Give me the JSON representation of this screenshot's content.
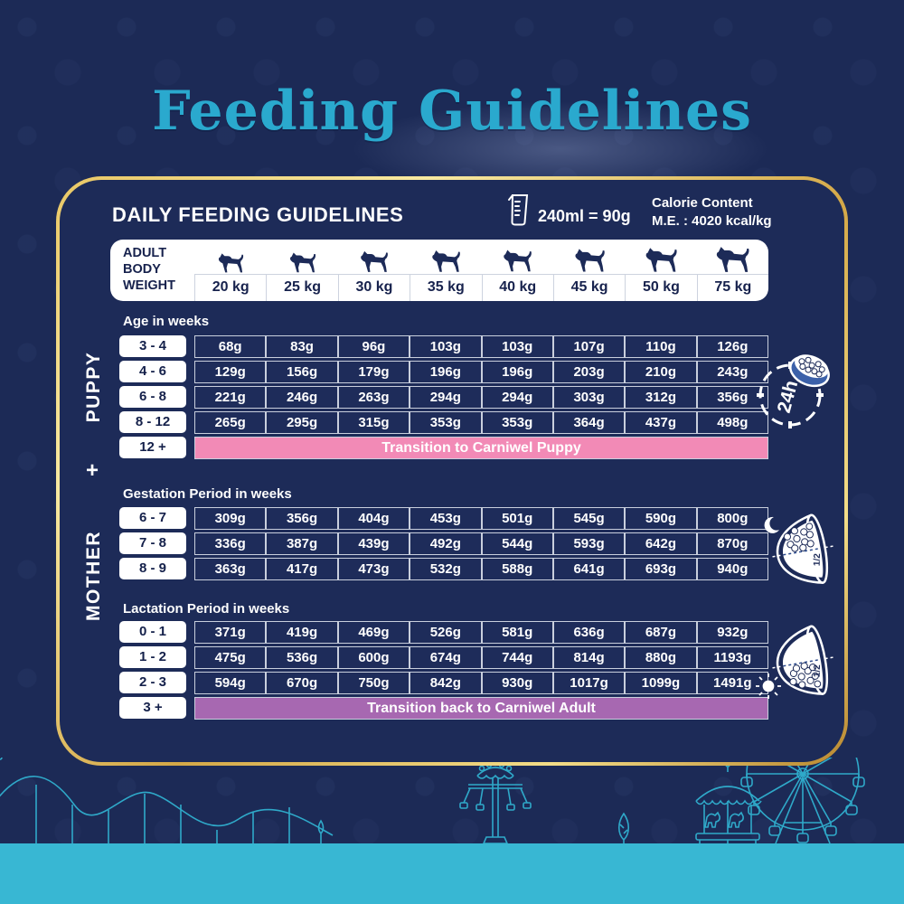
{
  "title": "Feeding Guidelines",
  "panel": {
    "heading": "DAILY FEEDING GUIDELINES",
    "measure_text": "240ml = 90g",
    "calorie_title": "Calorie Content",
    "calorie_value": "M.E. : 4020 kcal/kg",
    "weight_label_lines": [
      "ADULT",
      "BODY",
      "WEIGHT"
    ]
  },
  "side_labels": {
    "puppy": "PUPPY",
    "mother": "MOTHER",
    "mother_plus": "+"
  },
  "icons": {
    "clock_label": "24h",
    "half_label": "1/2",
    "names": [
      "24h-clock-with-kibble-bowl",
      "night-half-bowl",
      "day-half-bowl"
    ]
  },
  "colors": {
    "background_navy": "#1d2b58",
    "title_teal": "#2aa9ce",
    "bottom_strip_cyan": "#38b7d3",
    "gold_border": "#d9b257",
    "pink_banner": "#f28ab6",
    "purple_banner": "#a768b1",
    "cell_border": "#c9cfdd"
  },
  "chart_data": [
    {
      "type": "table",
      "title": "PUPPY",
      "subtitle": "Age in weeks",
      "columns": [
        "20 kg",
        "25 kg",
        "30 kg",
        "35 kg",
        "40 kg",
        "45 kg",
        "50 kg",
        "75 kg"
      ],
      "rows": [
        {
          "label": "3 - 4",
          "values": [
            "68g",
            "83g",
            "96g",
            "103g",
            "103g",
            "107g",
            "110g",
            "126g"
          ]
        },
        {
          "label": "4 - 6",
          "values": [
            "129g",
            "156g",
            "179g",
            "196g",
            "196g",
            "203g",
            "210g",
            "243g"
          ]
        },
        {
          "label": "6 - 8",
          "values": [
            "221g",
            "246g",
            "263g",
            "294g",
            "294g",
            "303g",
            "312g",
            "356g"
          ]
        },
        {
          "label": "8 - 12",
          "values": [
            "265g",
            "295g",
            "315g",
            "353g",
            "353g",
            "364g",
            "437g",
            "498g"
          ]
        }
      ],
      "banner": {
        "label": "12 +",
        "text": "Transition to Carniwel Puppy"
      }
    },
    {
      "type": "table",
      "title": "MOTHER + (Gestation)",
      "subtitle": "Gestation Period in weeks",
      "columns": [
        "20 kg",
        "25 kg",
        "30 kg",
        "35 kg",
        "40 kg",
        "45 kg",
        "50 kg",
        "75 kg"
      ],
      "rows": [
        {
          "label": "6 - 7",
          "values": [
            "309g",
            "356g",
            "404g",
            "453g",
            "501g",
            "545g",
            "590g",
            "800g"
          ]
        },
        {
          "label": "7 - 8",
          "values": [
            "336g",
            "387g",
            "439g",
            "492g",
            "544g",
            "593g",
            "642g",
            "870g"
          ]
        },
        {
          "label": "8 - 9",
          "values": [
            "363g",
            "417g",
            "473g",
            "532g",
            "588g",
            "641g",
            "693g",
            "940g"
          ]
        }
      ]
    },
    {
      "type": "table",
      "title": "MOTHER + (Lactation)",
      "subtitle": "Lactation Period in weeks",
      "columns": [
        "20 kg",
        "25 kg",
        "30 kg",
        "35 kg",
        "40 kg",
        "45 kg",
        "50 kg",
        "75 kg"
      ],
      "rows": [
        {
          "label": "0 - 1",
          "values": [
            "371g",
            "419g",
            "469g",
            "526g",
            "581g",
            "636g",
            "687g",
            "932g"
          ]
        },
        {
          "label": "1 - 2",
          "values": [
            "475g",
            "536g",
            "600g",
            "674g",
            "744g",
            "814g",
            "880g",
            "1193g"
          ]
        },
        {
          "label": "2 - 3",
          "values": [
            "594g",
            "670g",
            "750g",
            "842g",
            "930g",
            "1017g",
            "1099g",
            "1491g"
          ]
        }
      ],
      "banner": {
        "label": "3 +",
        "text": "Transition back to Carniwel Adult"
      }
    }
  ]
}
